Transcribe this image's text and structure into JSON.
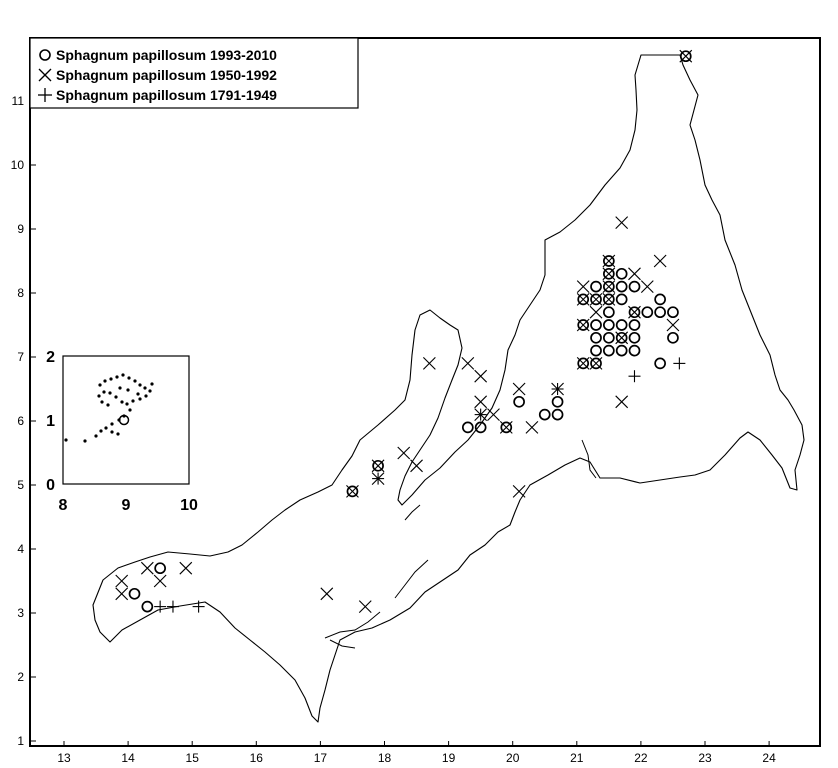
{
  "chart_data": {
    "type": "scatter",
    "title": "",
    "xlabel": "",
    "ylabel": "",
    "xlim": [
      12.5,
      24.8
    ],
    "ylim": [
      0.85,
      11.9
    ],
    "xticks": [
      "13",
      "14",
      "15",
      "16",
      "17",
      "18",
      "19",
      "20",
      "21",
      "22",
      "23",
      "24"
    ],
    "yticks": [
      "1",
      "2",
      "3",
      "4",
      "5",
      "6",
      "7",
      "8",
      "9",
      "10",
      "11"
    ],
    "legend_position": "top-left",
    "series": [
      {
        "name": "Sphagnum papillosum 1993-2010",
        "marker": "circle",
        "points": [
          [
            22.7,
            11.7
          ],
          [
            21.5,
            8.5
          ],
          [
            21.5,
            8.3
          ],
          [
            21.7,
            8.3
          ],
          [
            21.5,
            8.1
          ],
          [
            21.3,
            8.1
          ],
          [
            21.7,
            8.1
          ],
          [
            21.9,
            8.1
          ],
          [
            21.1,
            7.9
          ],
          [
            21.3,
            7.9
          ],
          [
            21.5,
            7.9
          ],
          [
            21.7,
            7.9
          ],
          [
            22.3,
            7.9
          ],
          [
            21.5,
            7.7
          ],
          [
            21.9,
            7.7
          ],
          [
            22.1,
            7.7
          ],
          [
            22.3,
            7.7
          ],
          [
            22.5,
            7.7
          ],
          [
            21.1,
            7.5
          ],
          [
            21.3,
            7.5
          ],
          [
            21.5,
            7.5
          ],
          [
            21.7,
            7.5
          ],
          [
            21.9,
            7.5
          ],
          [
            21.3,
            7.3
          ],
          [
            21.5,
            7.3
          ],
          [
            21.7,
            7.3
          ],
          [
            21.9,
            7.3
          ],
          [
            22.5,
            7.3
          ],
          [
            21.3,
            7.1
          ],
          [
            21.5,
            7.1
          ],
          [
            21.7,
            7.1
          ],
          [
            21.9,
            7.1
          ],
          [
            21.1,
            6.9
          ],
          [
            21.3,
            6.9
          ],
          [
            22.3,
            6.9
          ],
          [
            20.1,
            6.3
          ],
          [
            20.7,
            6.3
          ],
          [
            20.5,
            6.1
          ],
          [
            20.7,
            6.1
          ],
          [
            19.3,
            5.9
          ],
          [
            19.5,
            5.9
          ],
          [
            19.9,
            5.9
          ],
          [
            17.9,
            5.3
          ],
          [
            17.5,
            4.9
          ],
          [
            14.5,
            3.7
          ],
          [
            14.1,
            3.3
          ],
          [
            14.3,
            3.1
          ]
        ]
      },
      {
        "name": "Sphagnum papillosum 1950-1992",
        "marker": "x",
        "points": [
          [
            22.7,
            11.7
          ],
          [
            21.7,
            9.1
          ],
          [
            22.3,
            8.5
          ],
          [
            21.5,
            8.5
          ],
          [
            21.5,
            8.3
          ],
          [
            21.9,
            8.3
          ],
          [
            21.5,
            8.1
          ],
          [
            21.1,
            8.1
          ],
          [
            22.1,
            8.1
          ],
          [
            21.1,
            7.9
          ],
          [
            21.3,
            7.9
          ],
          [
            21.5,
            7.9
          ],
          [
            21.3,
            7.7
          ],
          [
            21.9,
            7.7
          ],
          [
            22.5,
            7.5
          ],
          [
            21.1,
            7.5
          ],
          [
            21.7,
            7.3
          ],
          [
            21.1,
            6.9
          ],
          [
            21.3,
            6.9
          ],
          [
            18.7,
            6.9
          ],
          [
            19.3,
            6.9
          ],
          [
            19.5,
            6.7
          ],
          [
            20.1,
            6.5
          ],
          [
            20.7,
            6.5
          ],
          [
            19.5,
            6.3
          ],
          [
            21.7,
            6.3
          ],
          [
            19.7,
            6.1
          ],
          [
            19.5,
            6.1
          ],
          [
            19.9,
            5.9
          ],
          [
            20.3,
            5.9
          ],
          [
            18.3,
            5.5
          ],
          [
            18.5,
            5.3
          ],
          [
            17.9,
            5.3
          ],
          [
            17.9,
            5.1
          ],
          [
            17.5,
            4.9
          ],
          [
            20.1,
            4.9
          ],
          [
            13.9,
            3.5
          ],
          [
            14.3,
            3.7
          ],
          [
            14.5,
            3.5
          ],
          [
            14.9,
            3.7
          ],
          [
            13.9,
            3.3
          ],
          [
            17.1,
            3.3
          ],
          [
            17.7,
            3.1
          ]
        ]
      },
      {
        "name": "Sphagnum papillosum 1791-1949",
        "marker": "plus",
        "points": [
          [
            20.7,
            6.5
          ],
          [
            19.5,
            6.1
          ],
          [
            17.9,
            5.1
          ],
          [
            21.9,
            6.7
          ],
          [
            22.6,
            6.9
          ],
          [
            14.5,
            3.1
          ],
          [
            14.7,
            3.1
          ],
          [
            15.1,
            3.1
          ]
        ]
      }
    ]
  },
  "inset": {
    "xticks": [
      "8",
      "9",
      "10"
    ],
    "yticks": [
      "0",
      "1",
      "2"
    ]
  }
}
